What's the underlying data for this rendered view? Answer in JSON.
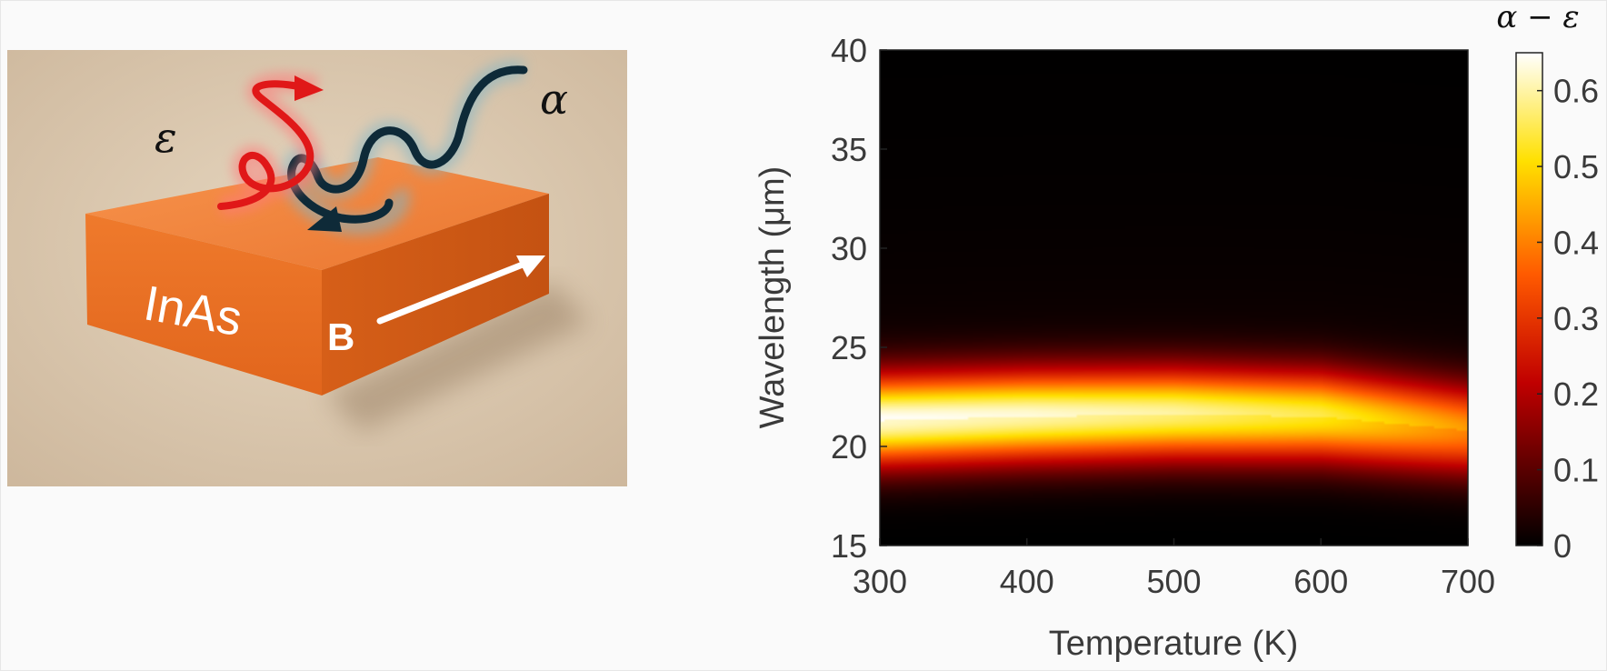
{
  "illustration": {
    "block_label": "InAs",
    "field_label": "B",
    "emission_label": "ε",
    "absorption_label": "α",
    "colors": {
      "background": "#dcc8ae",
      "block_top": "#f2823a",
      "block_front": "#e96f22",
      "block_side": "#cf5a14",
      "emission_wave": "#e01818",
      "absorption_wave": "#0e2a38"
    }
  },
  "chart_data": {
    "type": "heatmap",
    "title": "",
    "xlabel": "Temperature (K)",
    "ylabel": "Wavelength (μm)",
    "colorbar_label": "α − ε",
    "xlim": [
      300,
      700
    ],
    "ylim": [
      15,
      40
    ],
    "x_ticks": [
      "300",
      "400",
      "500",
      "600",
      "700"
    ],
    "y_ticks": [
      "15",
      "20",
      "25",
      "30",
      "35",
      "40"
    ],
    "colorbar_range": [
      0,
      0.65
    ],
    "colorbar_ticks": [
      "0",
      "0.1",
      "0.2",
      "0.3",
      "0.4",
      "0.5",
      "0.6"
    ],
    "colormap": "hot",
    "grid": false,
    "band": {
      "description_points": [
        {
          "temperature": 300,
          "center_wavelength": 21.3,
          "peak": 0.62
        },
        {
          "temperature": 400,
          "center_wavelength": 21.5,
          "peak": 0.6
        },
        {
          "temperature": 500,
          "center_wavelength": 21.6,
          "peak": 0.57
        },
        {
          "temperature": 600,
          "center_wavelength": 21.5,
          "peak": 0.52
        },
        {
          "temperature": 700,
          "center_wavelength": 20.8,
          "peak": 0.4
        }
      ],
      "width_um": 1.6
    }
  }
}
